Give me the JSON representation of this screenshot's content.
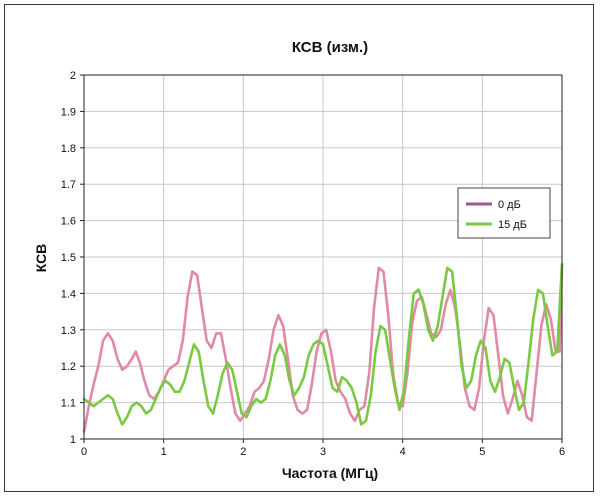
{
  "chart_data": {
    "type": "line",
    "title": "КСВ (изм.)",
    "xlabel": "Частота (МГц)",
    "ylabel": "КСВ",
    "xlim": [
      0,
      6
    ],
    "ylim": [
      1,
      2
    ],
    "x_ticks": [
      "0",
      "1",
      "2",
      "3",
      "4",
      "5",
      "6"
    ],
    "y_ticks": [
      "1",
      "1.1",
      "1.2",
      "1.3",
      "1.4",
      "1.5",
      "1.6",
      "1.7",
      "1.8",
      "1.9",
      "2"
    ],
    "grid": true,
    "legend_position": "right",
    "series": [
      {
        "name": "0 дБ",
        "color": "#e08aa6",
        "legend_color": "#a0529a",
        "points": [
          [
            0,
            1.02
          ],
          [
            0.06,
            1.09
          ],
          [
            0.12,
            1.15
          ],
          [
            0.18,
            1.2
          ],
          [
            0.24,
            1.27
          ],
          [
            0.3,
            1.29
          ],
          [
            0.36,
            1.27
          ],
          [
            0.42,
            1.22
          ],
          [
            0.48,
            1.19
          ],
          [
            0.54,
            1.2
          ],
          [
            0.6,
            1.22
          ],
          [
            0.65,
            1.24
          ],
          [
            0.7,
            1.21
          ],
          [
            0.76,
            1.16
          ],
          [
            0.82,
            1.12
          ],
          [
            0.88,
            1.11
          ],
          [
            0.94,
            1.13
          ],
          [
            1.0,
            1.16
          ],
          [
            1.06,
            1.19
          ],
          [
            1.12,
            1.2
          ],
          [
            1.18,
            1.21
          ],
          [
            1.24,
            1.27
          ],
          [
            1.3,
            1.39
          ],
          [
            1.36,
            1.46
          ],
          [
            1.42,
            1.45
          ],
          [
            1.48,
            1.36
          ],
          [
            1.54,
            1.27
          ],
          [
            1.6,
            1.25
          ],
          [
            1.66,
            1.29
          ],
          [
            1.72,
            1.29
          ],
          [
            1.78,
            1.22
          ],
          [
            1.84,
            1.14
          ],
          [
            1.9,
            1.07
          ],
          [
            1.96,
            1.05
          ],
          [
            2.02,
            1.07
          ],
          [
            2.08,
            1.09
          ],
          [
            2.14,
            1.13
          ],
          [
            2.2,
            1.14
          ],
          [
            2.26,
            1.16
          ],
          [
            2.32,
            1.22
          ],
          [
            2.38,
            1.3
          ],
          [
            2.44,
            1.34
          ],
          [
            2.5,
            1.31
          ],
          [
            2.56,
            1.22
          ],
          [
            2.62,
            1.12
          ],
          [
            2.68,
            1.08
          ],
          [
            2.74,
            1.07
          ],
          [
            2.8,
            1.08
          ],
          [
            2.86,
            1.15
          ],
          [
            2.92,
            1.24
          ],
          [
            2.98,
            1.29
          ],
          [
            3.04,
            1.3
          ],
          [
            3.1,
            1.24
          ],
          [
            3.16,
            1.16
          ],
          [
            3.22,
            1.13
          ],
          [
            3.28,
            1.11
          ],
          [
            3.34,
            1.07
          ],
          [
            3.4,
            1.05
          ],
          [
            3.46,
            1.08
          ],
          [
            3.52,
            1.09
          ],
          [
            3.58,
            1.18
          ],
          [
            3.64,
            1.36
          ],
          [
            3.7,
            1.47
          ],
          [
            3.76,
            1.46
          ],
          [
            3.82,
            1.34
          ],
          [
            3.88,
            1.18
          ],
          [
            3.94,
            1.1
          ],
          [
            4.0,
            1.09
          ],
          [
            4.06,
            1.18
          ],
          [
            4.12,
            1.32
          ],
          [
            4.18,
            1.38
          ],
          [
            4.24,
            1.39
          ],
          [
            4.3,
            1.34
          ],
          [
            4.36,
            1.29
          ],
          [
            4.42,
            1.28
          ],
          [
            4.48,
            1.3
          ],
          [
            4.54,
            1.37
          ],
          [
            4.6,
            1.41
          ],
          [
            4.66,
            1.36
          ],
          [
            4.72,
            1.26
          ],
          [
            4.78,
            1.14
          ],
          [
            4.84,
            1.09
          ],
          [
            4.9,
            1.08
          ],
          [
            4.96,
            1.14
          ],
          [
            5.02,
            1.27
          ],
          [
            5.08,
            1.36
          ],
          [
            5.14,
            1.34
          ],
          [
            5.2,
            1.23
          ],
          [
            5.26,
            1.12
          ],
          [
            5.32,
            1.07
          ],
          [
            5.38,
            1.11
          ],
          [
            5.44,
            1.16
          ],
          [
            5.5,
            1.12
          ],
          [
            5.56,
            1.06
          ],
          [
            5.62,
            1.05
          ],
          [
            5.68,
            1.18
          ],
          [
            5.74,
            1.31
          ],
          [
            5.8,
            1.37
          ],
          [
            5.86,
            1.33
          ],
          [
            5.92,
            1.24
          ],
          [
            5.97,
            1.24
          ],
          [
            6.0,
            1.48
          ]
        ]
      },
      {
        "name": "15 дБ",
        "color": "#7ac943",
        "legend_color": "#7ac943",
        "points": [
          [
            0,
            1.11
          ],
          [
            0.06,
            1.1
          ],
          [
            0.12,
            1.09
          ],
          [
            0.18,
            1.1
          ],
          [
            0.24,
            1.11
          ],
          [
            0.3,
            1.12
          ],
          [
            0.36,
            1.11
          ],
          [
            0.42,
            1.07
          ],
          [
            0.48,
            1.04
          ],
          [
            0.54,
            1.06
          ],
          [
            0.6,
            1.09
          ],
          [
            0.66,
            1.1
          ],
          [
            0.72,
            1.09
          ],
          [
            0.78,
            1.07
          ],
          [
            0.84,
            1.08
          ],
          [
            0.9,
            1.11
          ],
          [
            0.96,
            1.14
          ],
          [
            1.02,
            1.16
          ],
          [
            1.08,
            1.15
          ],
          [
            1.14,
            1.13
          ],
          [
            1.2,
            1.13
          ],
          [
            1.26,
            1.16
          ],
          [
            1.32,
            1.21
          ],
          [
            1.38,
            1.26
          ],
          [
            1.44,
            1.24
          ],
          [
            1.5,
            1.16
          ],
          [
            1.56,
            1.09
          ],
          [
            1.62,
            1.07
          ],
          [
            1.68,
            1.12
          ],
          [
            1.74,
            1.18
          ],
          [
            1.8,
            1.21
          ],
          [
            1.86,
            1.19
          ],
          [
            1.92,
            1.13
          ],
          [
            1.98,
            1.07
          ],
          [
            2.04,
            1.06
          ],
          [
            2.1,
            1.09
          ],
          [
            2.16,
            1.11
          ],
          [
            2.22,
            1.1
          ],
          [
            2.28,
            1.11
          ],
          [
            2.34,
            1.16
          ],
          [
            2.4,
            1.23
          ],
          [
            2.46,
            1.26
          ],
          [
            2.52,
            1.23
          ],
          [
            2.58,
            1.16
          ],
          [
            2.64,
            1.12
          ],
          [
            2.7,
            1.14
          ],
          [
            2.76,
            1.17
          ],
          [
            2.82,
            1.23
          ],
          [
            2.88,
            1.26
          ],
          [
            2.94,
            1.27
          ],
          [
            3.0,
            1.26
          ],
          [
            3.06,
            1.2
          ],
          [
            3.12,
            1.14
          ],
          [
            3.18,
            1.13
          ],
          [
            3.24,
            1.17
          ],
          [
            3.3,
            1.16
          ],
          [
            3.36,
            1.14
          ],
          [
            3.42,
            1.1
          ],
          [
            3.48,
            1.04
          ],
          [
            3.54,
            1.05
          ],
          [
            3.6,
            1.12
          ],
          [
            3.66,
            1.24
          ],
          [
            3.72,
            1.31
          ],
          [
            3.78,
            1.3
          ],
          [
            3.84,
            1.22
          ],
          [
            3.9,
            1.14
          ],
          [
            3.96,
            1.08
          ],
          [
            4.02,
            1.14
          ],
          [
            4.08,
            1.28
          ],
          [
            4.14,
            1.4
          ],
          [
            4.2,
            1.41
          ],
          [
            4.26,
            1.37
          ],
          [
            4.32,
            1.3
          ],
          [
            4.38,
            1.27
          ],
          [
            4.44,
            1.31
          ],
          [
            4.5,
            1.39
          ],
          [
            4.56,
            1.47
          ],
          [
            4.62,
            1.46
          ],
          [
            4.68,
            1.34
          ],
          [
            4.74,
            1.2
          ],
          [
            4.8,
            1.14
          ],
          [
            4.86,
            1.16
          ],
          [
            4.92,
            1.23
          ],
          [
            4.98,
            1.27
          ],
          [
            5.04,
            1.25
          ],
          [
            5.1,
            1.16
          ],
          [
            5.16,
            1.13
          ],
          [
            5.22,
            1.17
          ],
          [
            5.28,
            1.22
          ],
          [
            5.34,
            1.21
          ],
          [
            5.4,
            1.14
          ],
          [
            5.46,
            1.08
          ],
          [
            5.52,
            1.1
          ],
          [
            5.58,
            1.21
          ],
          [
            5.64,
            1.33
          ],
          [
            5.7,
            1.41
          ],
          [
            5.76,
            1.4
          ],
          [
            5.82,
            1.31
          ],
          [
            5.88,
            1.23
          ],
          [
            5.94,
            1.24
          ],
          [
            6.0,
            1.48
          ]
        ]
      }
    ]
  }
}
